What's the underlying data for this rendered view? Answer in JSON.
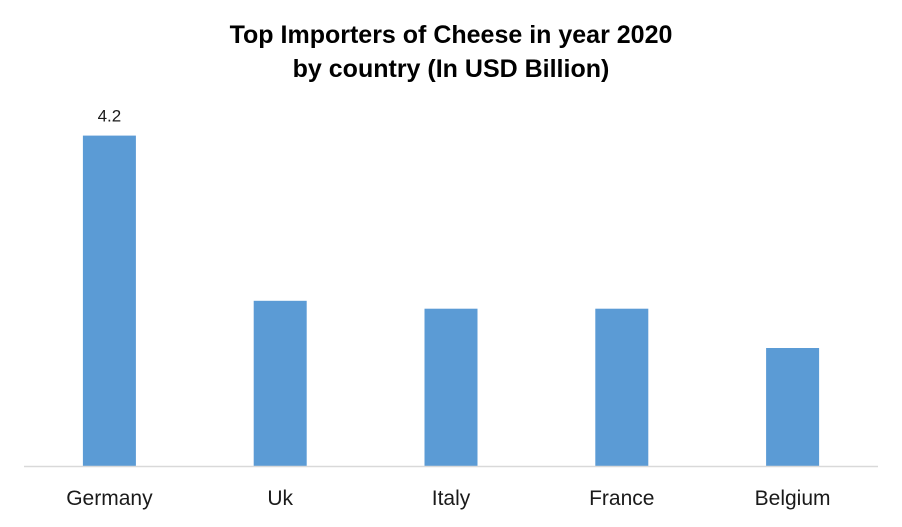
{
  "chart_data": {
    "type": "bar",
    "title": "Top Importers of Cheese in year 2020",
    "subtitle": "by country (In USD Billion)",
    "categories": [
      "Germany",
      "Uk",
      "Italy",
      "France",
      "Belgium"
    ],
    "values": [
      4.2,
      2.1,
      2.0,
      2.0,
      1.5
    ],
    "data_labels": [
      "4.2",
      "",
      "",
      "",
      ""
    ],
    "xlabel": "",
    "ylabel": "",
    "ylim": [
      0,
      5.25
    ],
    "grid": false,
    "legend": "none",
    "bar_color": "#5b9bd5",
    "axis_color": "#d9d9d9"
  }
}
